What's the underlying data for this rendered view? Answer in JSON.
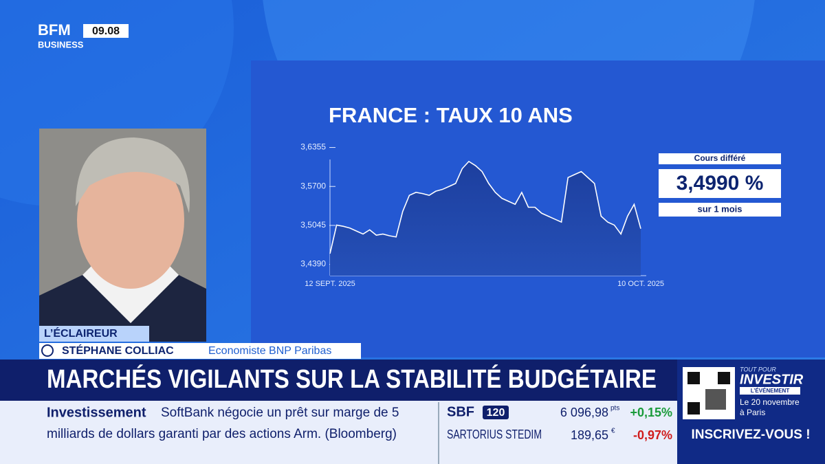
{
  "header": {
    "logo_line1": "BFM",
    "logo_line2": "BUSINESS",
    "clock": "09.08"
  },
  "chart_data": {
    "type": "area",
    "title": "FRANCE : TAUX 10 ANS",
    "categories": [
      "12 SEPT. 2025",
      null,
      null,
      null,
      null,
      null,
      null,
      null,
      null,
      null,
      null,
      null,
      null,
      null,
      null,
      null,
      null,
      null,
      null,
      null,
      null,
      null,
      null,
      null,
      null,
      null,
      null,
      null,
      null,
      null,
      null,
      null,
      null,
      null,
      null,
      null,
      null,
      null,
      null,
      null,
      null,
      null,
      null,
      null,
      null,
      null,
      null,
      "10 OCT. 2025"
    ],
    "values": [
      3.457,
      3.505,
      3.503,
      3.5,
      3.495,
      3.49,
      3.497,
      3.488,
      3.49,
      3.487,
      3.485,
      3.528,
      3.555,
      3.56,
      3.558,
      3.555,
      3.562,
      3.565,
      3.57,
      3.575,
      3.6,
      3.612,
      3.605,
      3.595,
      3.575,
      3.56,
      3.55,
      3.545,
      3.54,
      3.56,
      3.535,
      3.535,
      3.525,
      3.52,
      3.515,
      3.51,
      3.585,
      3.59,
      3.595,
      3.585,
      3.575,
      3.52,
      3.51,
      3.505,
      3.49,
      3.52,
      3.54,
      3.499
    ],
    "color": "#ffffff",
    "ylim": [
      3.42,
      3.65
    ],
    "yticks": [
      {
        "value": 3.439,
        "label": "3,4390"
      },
      {
        "value": 3.5045,
        "label": "3,5045"
      },
      {
        "value": 3.57,
        "label": "3,5700"
      },
      {
        "value": 3.6355,
        "label": "3,6355"
      }
    ]
  },
  "quote": {
    "caption": "Cours différé",
    "value": "3,4990 %",
    "period": "sur 1 mois"
  },
  "guest": {
    "show": "L’ÉCLAIREUR",
    "name": "STÉPHANE COLLIAC",
    "role": "Economiste BNP Paribas"
  },
  "headline": "MARCHÉS VIGILANTS SUR LA STABILITÉ BUDGÉTAIRE",
  "news": {
    "tag": "Investissement",
    "text_line1": "SoftBank négocie un prêt sur marge de 5",
    "text_line2": "milliards de dollars garanti par des actions Arm. (Bloomberg)"
  },
  "markets": {
    "index": {
      "name": "SBF",
      "badge": "120",
      "value": "6 096,98",
      "unit": "pts",
      "change": "+0,15%"
    },
    "stock": {
      "name": "SARTORIUS STEDIM",
      "value": "189,65",
      "unit": "€",
      "change": "-0,97%"
    }
  },
  "promo": {
    "line1": "TOUT POUR",
    "line2": "INVESTIR",
    "line3": "L’ÉVÉNEMENT",
    "line4": "Le 20 novembre",
    "line5": "à Paris",
    "cta": "INSCRIVEZ-VOUS !"
  }
}
